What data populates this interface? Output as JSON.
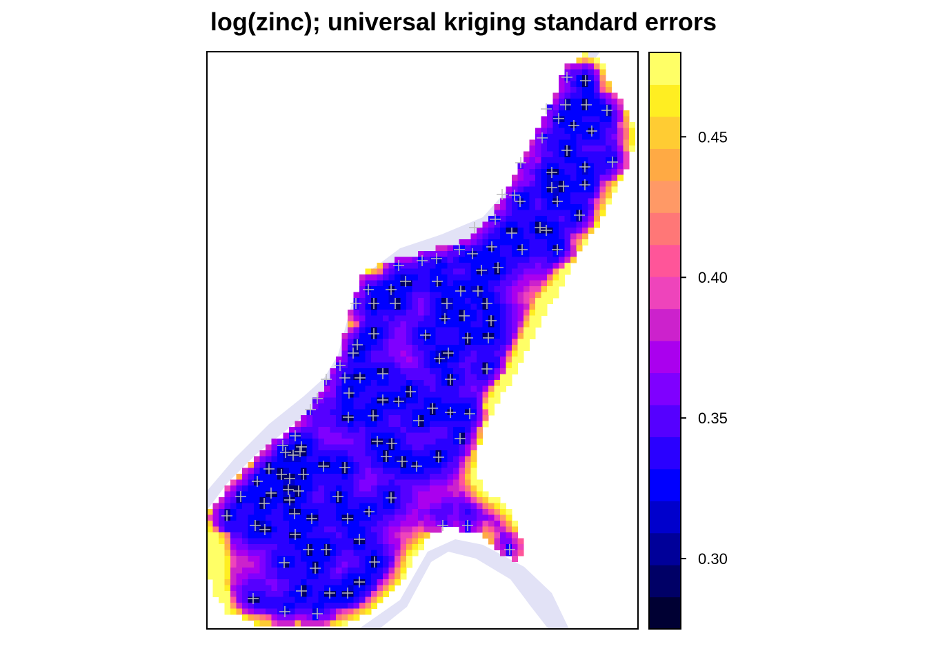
{
  "chart_data": {
    "type": "heatmap",
    "title": "log(zinc); universal kriging standard errors",
    "xlabel": "",
    "ylabel": "",
    "colorbar": {
      "range": [
        0.275,
        0.48
      ],
      "ticks": [
        0.3,
        0.35,
        0.4,
        0.45
      ],
      "tick_labels": [
        "0.30",
        "0.35",
        "0.40",
        "0.45"
      ],
      "colors": [
        "#000033",
        "#000066",
        "#000099",
        "#0000CC",
        "#0000FF",
        "#2A00FF",
        "#5500FF",
        "#7F00FF",
        "#AA00EE",
        "#CC22CC",
        "#EE44BB",
        "#FF5599",
        "#FF7777",
        "#FF9966",
        "#FFAA44",
        "#FFCC33",
        "#FFEE22",
        "#FFFF66"
      ]
    },
    "legend": "right",
    "grid": false,
    "overlays": [
      "river polygon (lavender)",
      "sample points (+ markers)"
    ]
  }
}
